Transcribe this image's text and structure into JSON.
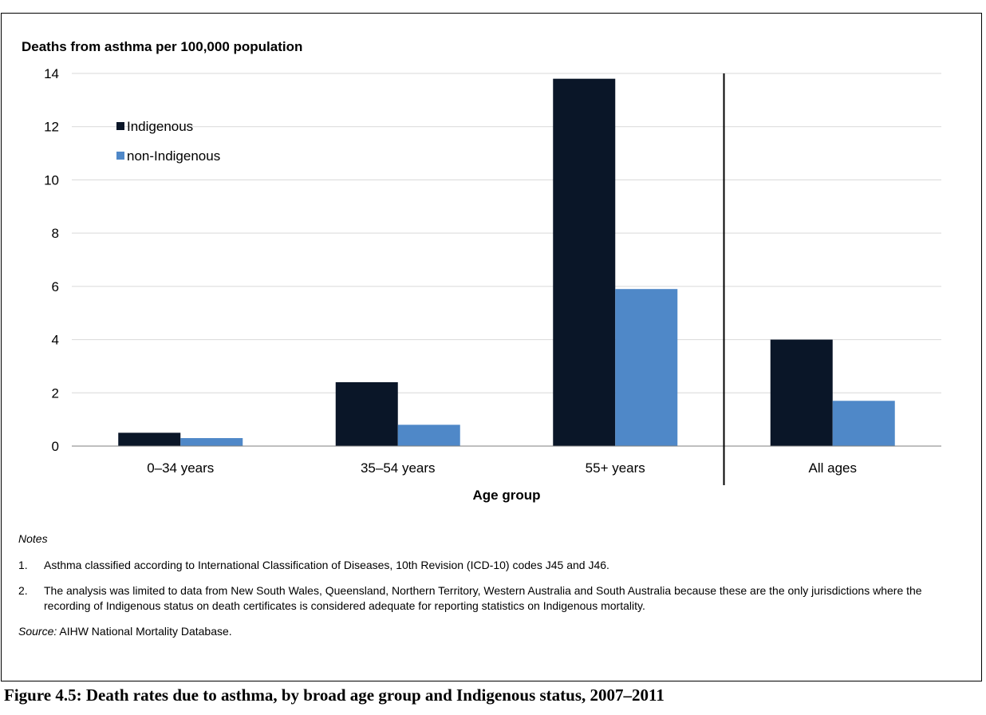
{
  "chart_data": {
    "type": "bar",
    "title": "Deaths from asthma per 100,000 population",
    "xlabel": "Age group",
    "ylabel": "",
    "ylim": [
      0,
      14
    ],
    "yticks": [
      "0",
      "2",
      "4",
      "6",
      "8",
      "10",
      "12",
      "14"
    ],
    "categories": [
      "0–34 years",
      "35–54 years",
      "55+ years",
      "All ages"
    ],
    "series": [
      {
        "name": "Indigenous",
        "values": [
          0.5,
          2.4,
          13.8,
          4.0
        ],
        "color": "#0a1628"
      },
      {
        "name": "non-Indigenous",
        "values": [
          0.3,
          0.8,
          5.9,
          1.7
        ],
        "color": "#4f88c8"
      }
    ],
    "grid": true,
    "legend_position": "top-left",
    "separator_before_category": "All ages"
  },
  "notes": {
    "heading": "Notes",
    "items": [
      {
        "num": "1.",
        "text": "Asthma classified according to International Classification of Diseases, 10th Revision (ICD-10) codes J45 and J46."
      },
      {
        "num": "2.",
        "text": "The analysis was limited to data from New South Wales, Queensland, Northern Territory, Western Australia and South Australia because these are the only jurisdictions where the recording of Indigenous status on death certificates is considered adequate for reporting statistics on Indigenous mortality."
      }
    ],
    "source_label": "Source:",
    "source_text": " AIHW National Mortality Database."
  },
  "caption": "Figure 4.5: Death rates due to asthma, by broad age group and Indigenous status, 2007–2011"
}
